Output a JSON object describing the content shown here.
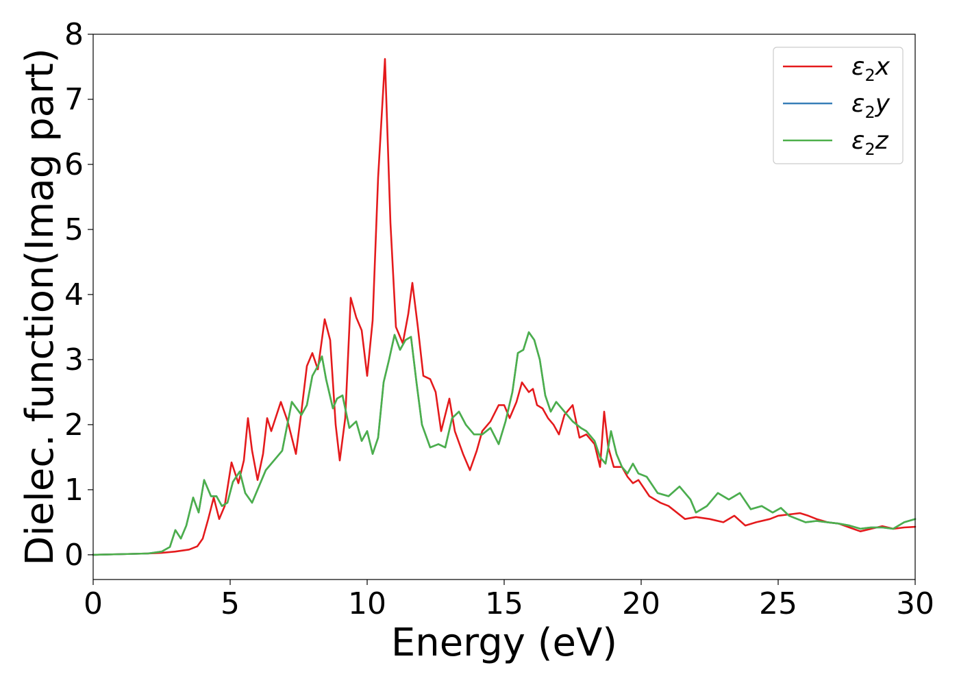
{
  "chart_data": {
    "type": "line",
    "title": "",
    "xlabel": "Energy (eV)",
    "ylabel": "Dielec. function(Imag part)",
    "xlim": [
      0,
      30
    ],
    "ylim": [
      -0.38,
      8.0
    ],
    "xticks": [
      0,
      5,
      10,
      15,
      20,
      25,
      30
    ],
    "yticks": [
      0,
      1,
      2,
      3,
      4,
      5,
      6,
      7,
      8
    ],
    "grid": false,
    "legend_position": "top-right",
    "series": [
      {
        "name": "ε₂x",
        "legend_main": "ε",
        "legend_sub": "2",
        "legend_suffix": "x",
        "color": "#e41a1c",
        "x": [
          0,
          1,
          2,
          2.5,
          3.0,
          3.5,
          3.8,
          4.0,
          4.2,
          4.4,
          4.6,
          4.8,
          5.05,
          5.3,
          5.5,
          5.65,
          5.8,
          6.0,
          6.2,
          6.35,
          6.5,
          6.85,
          7.1,
          7.4,
          7.6,
          7.8,
          8.0,
          8.2,
          8.45,
          8.65,
          8.85,
          9.0,
          9.2,
          9.4,
          9.6,
          9.8,
          10.0,
          10.2,
          10.4,
          10.65,
          10.85,
          11.05,
          11.3,
          11.5,
          11.65,
          11.85,
          12.05,
          12.3,
          12.5,
          12.7,
          13.0,
          13.2,
          13.5,
          13.75,
          14.0,
          14.2,
          14.5,
          14.8,
          15.0,
          15.2,
          15.45,
          15.65,
          15.9,
          16.05,
          16.2,
          16.4,
          16.6,
          16.8,
          17.0,
          17.2,
          17.5,
          17.75,
          18.0,
          18.3,
          18.5,
          18.65,
          18.8,
          19.0,
          19.3,
          19.5,
          19.7,
          19.9,
          20.3,
          20.7,
          21.0,
          21.3,
          21.6,
          22.0,
          22.5,
          23.0,
          23.4,
          23.8,
          24.2,
          24.7,
          25.0,
          25.4,
          25.8,
          26.1,
          26.4,
          26.8,
          27.2,
          27.6,
          28.0,
          28.4,
          28.8,
          29.2,
          29.6,
          30.0
        ],
        "y": [
          0.0,
          0.01,
          0.02,
          0.03,
          0.05,
          0.08,
          0.13,
          0.25,
          0.55,
          0.88,
          0.55,
          0.75,
          1.42,
          1.1,
          1.45,
          2.1,
          1.6,
          1.15,
          1.55,
          2.1,
          1.9,
          2.35,
          2.05,
          1.55,
          2.2,
          2.9,
          3.1,
          2.85,
          3.62,
          3.3,
          2.0,
          1.45,
          2.1,
          3.95,
          3.65,
          3.45,
          2.75,
          3.6,
          5.8,
          7.62,
          5.1,
          3.5,
          3.25,
          3.7,
          4.18,
          3.5,
          2.75,
          2.7,
          2.5,
          1.9,
          2.4,
          1.9,
          1.55,
          1.3,
          1.6,
          1.9,
          2.05,
          2.3,
          2.3,
          2.1,
          2.35,
          2.65,
          2.5,
          2.55,
          2.3,
          2.25,
          2.1,
          2.0,
          1.85,
          2.15,
          2.3,
          1.8,
          1.85,
          1.7,
          1.35,
          2.2,
          1.65,
          1.35,
          1.35,
          1.2,
          1.1,
          1.15,
          0.9,
          0.8,
          0.75,
          0.65,
          0.55,
          0.58,
          0.55,
          0.5,
          0.6,
          0.45,
          0.5,
          0.55,
          0.6,
          0.62,
          0.64,
          0.6,
          0.55,
          0.5,
          0.48,
          0.42,
          0.36,
          0.4,
          0.44,
          0.4,
          0.42,
          0.43
        ]
      },
      {
        "name": "ε₂y",
        "legend_main": "ε",
        "legend_sub": "2",
        "legend_suffix": "y",
        "color": "#377eb8",
        "x": [
          0,
          1,
          2,
          2.5,
          2.8,
          3.0,
          3.2,
          3.4,
          3.65,
          3.85,
          4.05,
          4.3,
          4.5,
          4.7,
          4.9,
          5.1,
          5.35,
          5.55,
          5.8,
          6.0,
          6.3,
          6.6,
          6.9,
          7.25,
          7.6,
          7.8,
          8.0,
          8.2,
          8.35,
          8.5,
          8.75,
          8.9,
          9.1,
          9.35,
          9.6,
          9.8,
          10.0,
          10.2,
          10.4,
          10.6,
          10.8,
          11.0,
          11.2,
          11.4,
          11.6,
          11.8,
          12.0,
          12.3,
          12.6,
          12.85,
          13.1,
          13.35,
          13.6,
          13.9,
          14.2,
          14.5,
          14.8,
          15.05,
          15.3,
          15.5,
          15.7,
          15.9,
          16.1,
          16.3,
          16.5,
          16.7,
          16.9,
          17.1,
          17.3,
          17.5,
          17.8,
          18.0,
          18.3,
          18.5,
          18.7,
          18.9,
          19.1,
          19.3,
          19.5,
          19.7,
          19.9,
          20.2,
          20.6,
          21.0,
          21.4,
          21.8,
          22.0,
          22.4,
          22.8,
          23.2,
          23.6,
          24.0,
          24.4,
          24.8,
          25.1,
          25.4,
          25.7,
          26.0,
          26.4,
          26.8,
          27.2,
          27.6,
          28.0,
          28.4,
          28.8,
          29.2,
          29.6,
          30.0
        ],
        "y": [
          0.0,
          0.01,
          0.02,
          0.05,
          0.12,
          0.38,
          0.25,
          0.45,
          0.88,
          0.65,
          1.15,
          0.9,
          0.9,
          0.75,
          0.8,
          1.12,
          1.28,
          0.95,
          0.8,
          1.0,
          1.3,
          1.45,
          1.6,
          2.35,
          2.15,
          2.3,
          2.75,
          2.9,
          3.05,
          2.7,
          2.25,
          2.4,
          2.45,
          1.95,
          2.05,
          1.75,
          1.9,
          1.55,
          1.8,
          2.65,
          3.0,
          3.38,
          3.15,
          3.3,
          3.35,
          2.65,
          2.0,
          1.65,
          1.7,
          1.65,
          2.1,
          2.2,
          2.0,
          1.85,
          1.85,
          1.95,
          1.7,
          2.05,
          2.5,
          3.1,
          3.15,
          3.42,
          3.3,
          3.0,
          2.45,
          2.2,
          2.35,
          2.25,
          2.15,
          2.05,
          1.95,
          1.9,
          1.75,
          1.5,
          1.4,
          1.9,
          1.55,
          1.35,
          1.25,
          1.4,
          1.25,
          1.2,
          0.95,
          0.9,
          1.05,
          0.85,
          0.65,
          0.75,
          0.95,
          0.85,
          0.95,
          0.7,
          0.75,
          0.65,
          0.72,
          0.6,
          0.55,
          0.5,
          0.52,
          0.5,
          0.48,
          0.45,
          0.4,
          0.42,
          0.42,
          0.4,
          0.5,
          0.55
        ]
      },
      {
        "name": "ε₂z",
        "legend_main": "ε",
        "legend_sub": "2",
        "legend_suffix": "z",
        "color": "#4daf4a",
        "x": [
          0,
          1,
          2,
          2.5,
          2.8,
          3.0,
          3.2,
          3.4,
          3.65,
          3.85,
          4.05,
          4.3,
          4.5,
          4.7,
          4.9,
          5.1,
          5.35,
          5.55,
          5.8,
          6.0,
          6.3,
          6.6,
          6.9,
          7.25,
          7.6,
          7.8,
          8.0,
          8.2,
          8.35,
          8.5,
          8.75,
          8.9,
          9.1,
          9.35,
          9.6,
          9.8,
          10.0,
          10.2,
          10.4,
          10.6,
          10.8,
          11.0,
          11.2,
          11.4,
          11.6,
          11.8,
          12.0,
          12.3,
          12.6,
          12.85,
          13.1,
          13.35,
          13.6,
          13.9,
          14.2,
          14.5,
          14.8,
          15.05,
          15.3,
          15.5,
          15.7,
          15.9,
          16.1,
          16.3,
          16.5,
          16.7,
          16.9,
          17.1,
          17.3,
          17.5,
          17.8,
          18.0,
          18.3,
          18.5,
          18.7,
          18.9,
          19.1,
          19.3,
          19.5,
          19.7,
          19.9,
          20.2,
          20.6,
          21.0,
          21.4,
          21.8,
          22.0,
          22.4,
          22.8,
          23.2,
          23.6,
          24.0,
          24.4,
          24.8,
          25.1,
          25.4,
          25.7,
          26.0,
          26.4,
          26.8,
          27.2,
          27.6,
          28.0,
          28.4,
          28.8,
          29.2,
          29.6,
          30.0
        ],
        "y": [
          0.0,
          0.01,
          0.02,
          0.05,
          0.12,
          0.38,
          0.25,
          0.45,
          0.88,
          0.65,
          1.15,
          0.9,
          0.9,
          0.75,
          0.8,
          1.12,
          1.28,
          0.95,
          0.8,
          1.0,
          1.3,
          1.45,
          1.6,
          2.35,
          2.15,
          2.3,
          2.75,
          2.9,
          3.05,
          2.7,
          2.25,
          2.4,
          2.45,
          1.95,
          2.05,
          1.75,
          1.9,
          1.55,
          1.8,
          2.65,
          3.0,
          3.38,
          3.15,
          3.3,
          3.35,
          2.65,
          2.0,
          1.65,
          1.7,
          1.65,
          2.1,
          2.2,
          2.0,
          1.85,
          1.85,
          1.95,
          1.7,
          2.05,
          2.5,
          3.1,
          3.15,
          3.42,
          3.3,
          3.0,
          2.45,
          2.2,
          2.35,
          2.25,
          2.15,
          2.05,
          1.95,
          1.9,
          1.75,
          1.5,
          1.4,
          1.9,
          1.55,
          1.35,
          1.25,
          1.4,
          1.25,
          1.2,
          0.95,
          0.9,
          1.05,
          0.85,
          0.65,
          0.75,
          0.95,
          0.85,
          0.95,
          0.7,
          0.75,
          0.65,
          0.72,
          0.6,
          0.55,
          0.5,
          0.52,
          0.5,
          0.48,
          0.45,
          0.4,
          0.42,
          0.42,
          0.4,
          0.5,
          0.55
        ]
      }
    ]
  }
}
